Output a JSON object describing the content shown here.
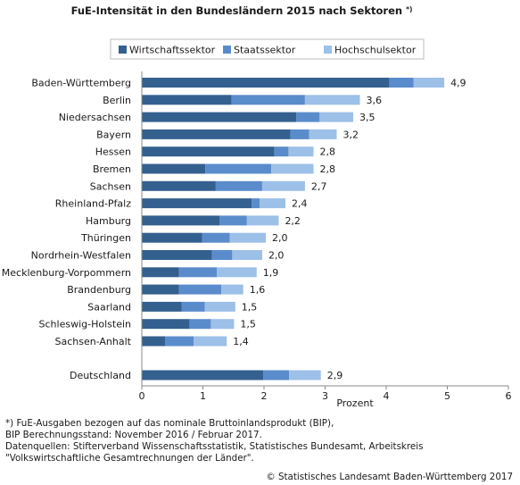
{
  "chart_data": {
    "type": "bar",
    "orientation": "horizontal",
    "stacked": true,
    "title": "FuE-Intensität in den Bundesländern 2015 nach Sektoren",
    "title_marker": "*)",
    "xlabel": "Prozent",
    "ylabel": "",
    "xlim": [
      0,
      6
    ],
    "xticks": [
      0,
      1,
      2,
      3,
      4,
      5,
      6
    ],
    "grid": false,
    "legend_position": "top",
    "categories": [
      "Baden-Württemberg",
      "Berlin",
      "Niedersachsen",
      "Bayern",
      "Hessen",
      "Bremen",
      "Sachsen",
      "Rheinland-Pfalz",
      "Hamburg",
      "Thüringen",
      "Nordrhein-Westfalen",
      "Mecklenburg-Vorpommern",
      "Brandenburg",
      "Saarland",
      "Schleswig-Holstein",
      "Sachsen-Anhalt",
      "Deutschland"
    ],
    "series": [
      {
        "name": "Wirtschaftssektor",
        "color": "#34608f",
        "values": [
          4.05,
          1.47,
          2.53,
          2.43,
          2.17,
          1.04,
          1.21,
          1.8,
          1.27,
          0.99,
          1.15,
          0.61,
          0.61,
          0.65,
          0.78,
          0.38,
          1.99
        ]
      },
      {
        "name": "Staatssektor",
        "color": "#5a8ccb",
        "values": [
          0.4,
          1.2,
          0.38,
          0.31,
          0.23,
          1.08,
          0.76,
          0.13,
          0.45,
          0.45,
          0.33,
          0.62,
          0.69,
          0.38,
          0.35,
          0.47,
          0.42
        ]
      },
      {
        "name": "Hochschulsektor",
        "color": "#9cc0e8",
        "values": [
          0.5,
          0.9,
          0.55,
          0.45,
          0.41,
          0.69,
          0.7,
          0.42,
          0.52,
          0.59,
          0.49,
          0.65,
          0.36,
          0.5,
          0.38,
          0.54,
          0.52
        ]
      }
    ],
    "totals": [
      "4,9",
      "3,6",
      "3,5",
      "3,2",
      "2,8",
      "2,8",
      "2,7",
      "2,4",
      "2,2",
      "2,0",
      "2,0",
      "1,9",
      "1,6",
      "1,5",
      "1,5",
      "1,4",
      "2,9"
    ]
  },
  "footnotes": [
    "*) FuE-Ausgaben bezogen auf das nominale Bruttoinlandsprodukt (BIP),",
    "BIP Berechnungsstand: November 2016 / Februar 2017.",
    "Datenquellen: Stifterverband Wissenschaftsstatistik, Statistisches Bundesamt, Arbeitskreis",
    "\"Volkswirtschaftliche Gesamtrechnungen der Länder\"."
  ],
  "copyright": "© Statistisches Landesamt Baden-Württemberg 2017"
}
